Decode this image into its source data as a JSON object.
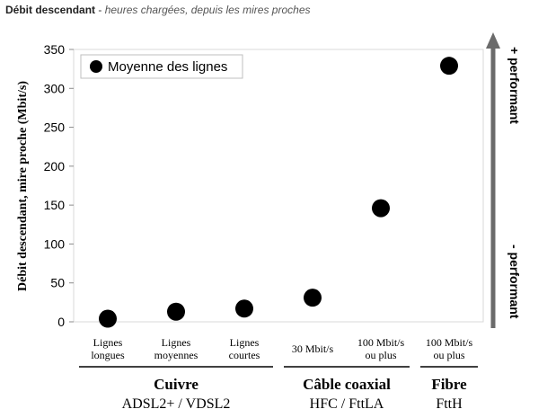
{
  "caption": {
    "title": "Débit descendant",
    "separator": " - ",
    "subtitle": "heures chargées, depuis les mires proches"
  },
  "chart_data": {
    "type": "scatter",
    "ylabel": "Débit descendant, mire proche (Mbit/s)",
    "ylim": [
      0,
      350
    ],
    "yticks": [
      0,
      50,
      100,
      150,
      200,
      250,
      300,
      350
    ],
    "grid": false,
    "legend_position": "top-left",
    "series": [
      {
        "name": "Moyenne des lignes",
        "color": "#000000",
        "categories": [
          [
            "Lignes",
            "longues"
          ],
          [
            "Lignes",
            "moyennes"
          ],
          [
            "Lignes",
            "courtes"
          ],
          [
            "30 Mbit/s"
          ],
          [
            "100 Mbit/s",
            "ou plus"
          ],
          [
            "100 Mbit/s",
            "ou plus"
          ]
        ],
        "values": [
          4,
          13,
          17,
          31,
          146,
          329
        ]
      }
    ],
    "groups": [
      {
        "name": "Cuivre",
        "sub": "ADSL2+ / VDSL2",
        "span": [
          0,
          2
        ]
      },
      {
        "name": "Câble coaxial",
        "sub": "HFC / FttLA",
        "span": [
          3,
          4
        ]
      },
      {
        "name": "Fibre",
        "sub": "FttH",
        "span": [
          5,
          5
        ]
      }
    ],
    "arrow_labels": {
      "top": "+ performant",
      "bottom": "- performant"
    }
  }
}
